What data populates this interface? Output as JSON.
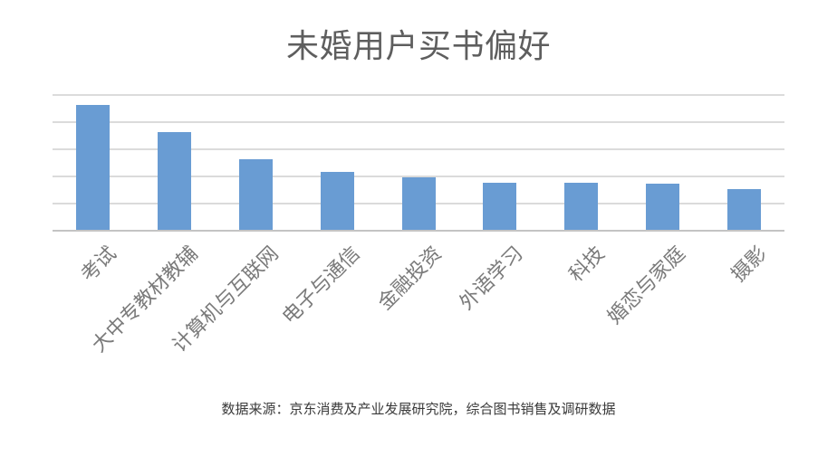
{
  "title": "未婚用户买书偏好",
  "source_note": "数据来源：京东消费及产业发展研究院，综合图书销售及调研数据",
  "colors": {
    "bar": "#699CD3",
    "gridline": "#DBDBDB",
    "axis_line": "#C4C4C4",
    "title_text": "#5E5E5E",
    "category_label": "#7A7A7A",
    "source_text": "#3A3A3A",
    "background": "#FFFFFF"
  },
  "chart_data": {
    "type": "bar",
    "title": "未婚用户买书偏好",
    "categories": [
      "考试",
      "大中专教材教辅",
      "计算机与互联网",
      "电子与通信",
      "金融投资",
      "外语学习",
      "科技",
      "婚恋与家庭",
      "摄影"
    ],
    "values": [
      23.1,
      18.2,
      13.1,
      10.8,
      9.8,
      8.8,
      8.8,
      8.6,
      7.6
    ],
    "xlabel": "",
    "ylabel": "",
    "ylim": [
      0,
      25
    ],
    "gridline_step": 5,
    "grid": true,
    "legend": false,
    "y_axis_labels_visible": false,
    "x_label_rotation_deg": 45,
    "note": "no value-axis labels shown in source; values estimated from gridlines"
  }
}
